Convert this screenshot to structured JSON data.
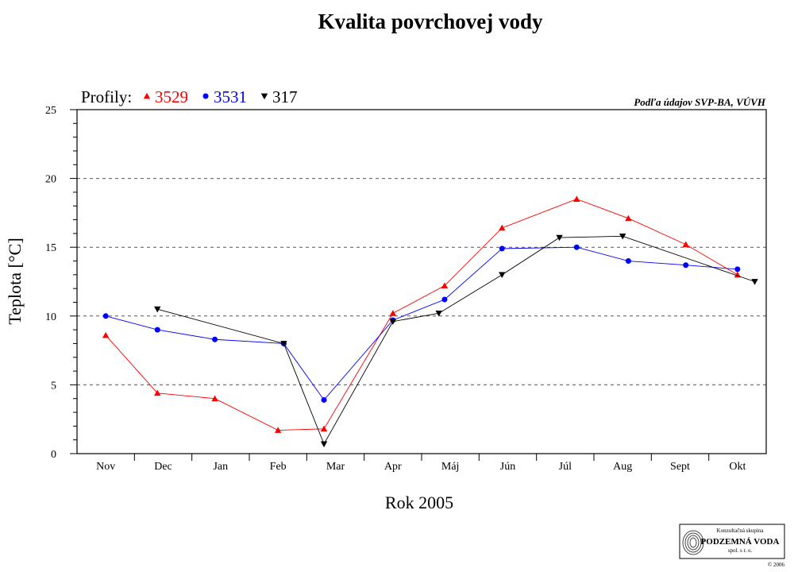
{
  "chart_data": {
    "type": "line",
    "title": "Kvalita povrchovej vody",
    "xlabel": "Rok 2005",
    "ylabel": "Teplota [°C]",
    "ylim": [
      0,
      25
    ],
    "yticks": [
      "0",
      "5",
      "10",
      "15",
      "20",
      "25"
    ],
    "grid": "horizontal dashed",
    "legend_placement": "top-left",
    "legend_prefix": "Profily:",
    "source_note": "Podľa údajov SVP-BA, VÚVH",
    "categories": [
      "Nov",
      "Dec",
      "Jan",
      "Feb",
      "Mar",
      "Apr",
      "Máj",
      "Jún",
      "Júl",
      "Aug",
      "Sept",
      "Okt"
    ],
    "series": [
      {
        "name": "3529",
        "color": "#ff0000",
        "marker": "triangle-up",
        "points": [
          {
            "x": 0.0,
            "y": 8.6
          },
          {
            "x": 0.9,
            "y": 4.4
          },
          {
            "x": 1.9,
            "y": 4.0
          },
          {
            "x": 3.0,
            "y": 1.7
          },
          {
            "x": 3.8,
            "y": 1.8
          },
          {
            "x": 5.0,
            "y": 10.2
          },
          {
            "x": 5.9,
            "y": 12.2
          },
          {
            "x": 6.9,
            "y": 16.4
          },
          {
            "x": 8.2,
            "y": 18.5
          },
          {
            "x": 9.1,
            "y": 17.1
          },
          {
            "x": 10.1,
            "y": 15.2
          },
          {
            "x": 11.0,
            "y": 13.0
          }
        ]
      },
      {
        "name": "3531",
        "color": "#0000ff",
        "marker": "circle",
        "points": [
          {
            "x": 0.0,
            "y": 10.0
          },
          {
            "x": 0.9,
            "y": 9.0
          },
          {
            "x": 1.9,
            "y": 8.3
          },
          {
            "x": 3.1,
            "y": 8.0
          },
          {
            "x": 3.8,
            "y": 3.9
          },
          {
            "x": 5.0,
            "y": 9.7
          },
          {
            "x": 5.9,
            "y": 11.2
          },
          {
            "x": 6.9,
            "y": 14.9
          },
          {
            "x": 8.2,
            "y": 15.0
          },
          {
            "x": 9.1,
            "y": 14.0
          },
          {
            "x": 10.1,
            "y": 13.7
          },
          {
            "x": 11.0,
            "y": 13.4
          }
        ]
      },
      {
        "name": "317",
        "color": "#000000",
        "marker": "triangle-down",
        "points": [
          {
            "x": 0.9,
            "y": 10.5
          },
          {
            "x": 3.1,
            "y": 8.0
          },
          {
            "x": 3.8,
            "y": 0.7
          },
          {
            "x": 5.0,
            "y": 9.6
          },
          {
            "x": 5.8,
            "y": 10.2
          },
          {
            "x": 6.9,
            "y": 13.0
          },
          {
            "x": 7.9,
            "y": 15.7
          },
          {
            "x": 9.0,
            "y": 15.8
          },
          {
            "x": 11.3,
            "y": 12.5
          }
        ]
      }
    ]
  },
  "logo": {
    "line1": "Konzultačná skupina",
    "line2": "PODZEMNÁ VODA",
    "line3": "spol. s r. o.",
    "copyright": "© 2006"
  }
}
